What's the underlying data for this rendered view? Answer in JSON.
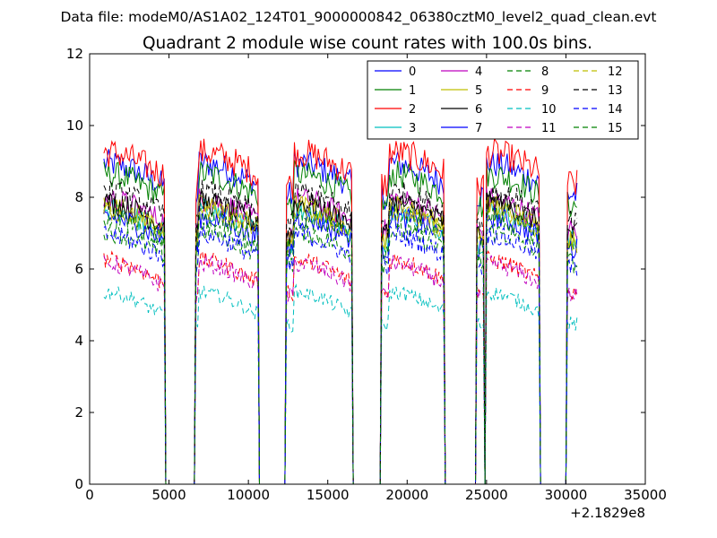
{
  "suptitle": "Data file: modeM0/AS1A02_124T01_9000000842_06380cztM0_level2_quad_clean.evt",
  "chart_data": {
    "type": "line",
    "title": "Quadrant 2 module wise count rates with 100.0s bins.",
    "xlabel": "",
    "ylabel": "",
    "x_offset_label": "+2.1829e8",
    "xlim": [
      0,
      35000
    ],
    "ylim": [
      0,
      12
    ],
    "x_ticks": [
      0,
      5000,
      10000,
      15000,
      20000,
      25000,
      30000,
      35000
    ],
    "x_tick_labels": [
      "0",
      "5000",
      "10000",
      "15000",
      "20000",
      "25000",
      "30000",
      "35000"
    ],
    "y_ticks": [
      0,
      2,
      4,
      6,
      8,
      10,
      12
    ],
    "y_tick_labels": [
      "0",
      "2",
      "4",
      "6",
      "8",
      "10",
      "12"
    ],
    "grid": false,
    "legend_position": "top-right",
    "legend_columns": 4,
    "data_start": 900,
    "data_end": 30700,
    "gaps": [
      [
        4750,
        6700
      ],
      [
        10650,
        12400
      ],
      [
        16550,
        18400
      ],
      [
        22350,
        24400
      ],
      [
        24800,
        25000
      ],
      [
        28300,
        30050
      ]
    ],
    "series": [
      {
        "name": "0",
        "color": "#0000ff",
        "dash": "solid",
        "level": 8.5
      },
      {
        "name": "1",
        "color": "#008000",
        "dash": "solid",
        "level": 8.2
      },
      {
        "name": "2",
        "color": "#ff0000",
        "dash": "solid",
        "level": 8.8
      },
      {
        "name": "3",
        "color": "#00bfbf",
        "dash": "solid",
        "level": 7.2
      },
      {
        "name": "4",
        "color": "#bf00bf",
        "dash": "solid",
        "level": 7.5
      },
      {
        "name": "5",
        "color": "#bfbf00",
        "dash": "solid",
        "level": 7.3
      },
      {
        "name": "6",
        "color": "#000000",
        "dash": "solid",
        "level": 7.4
      },
      {
        "name": "7",
        "color": "#0000ff",
        "dash": "solid",
        "level": 7.0
      },
      {
        "name": "8",
        "color": "#008000",
        "dash": "dashed",
        "level": 6.6
      },
      {
        "name": "9",
        "color": "#ff0000",
        "dash": "dashed",
        "level": 5.8
      },
      {
        "name": "10",
        "color": "#00bfbf",
        "dash": "dashed",
        "level": 4.9
      },
      {
        "name": "11",
        "color": "#bf00bf",
        "dash": "dashed",
        "level": 5.7
      },
      {
        "name": "12",
        "color": "#bfbf00",
        "dash": "dashed",
        "level": 7.2
      },
      {
        "name": "13",
        "color": "#000000",
        "dash": "dashed",
        "level": 7.7
      },
      {
        "name": "14",
        "color": "#0000ff",
        "dash": "dashed",
        "level": 6.5
      },
      {
        "name": "15",
        "color": "#008000",
        "dash": "dashed",
        "level": 7.0
      }
    ]
  }
}
